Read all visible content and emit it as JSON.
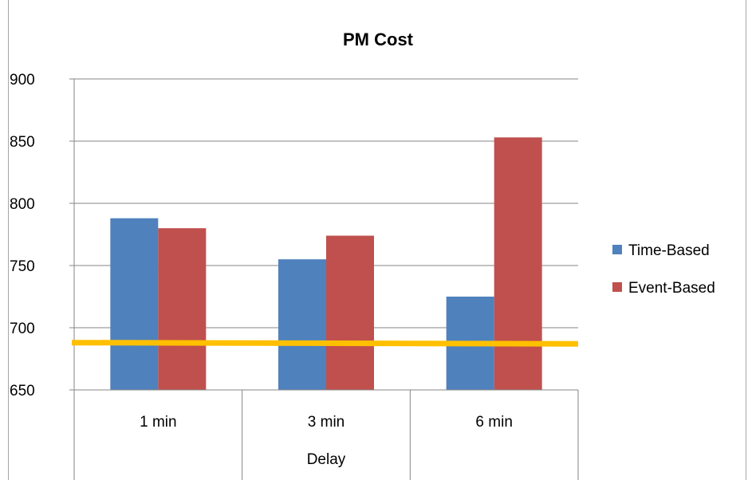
{
  "chart_data": {
    "type": "bar",
    "title": "PM Cost",
    "xlabel": "Delay",
    "ylabel": "",
    "categories": [
      "1 min",
      "3 min",
      "6 min"
    ],
    "series": [
      {
        "name": "Time-Based",
        "values": [
          788,
          755,
          725
        ],
        "color": "#4f81bd"
      },
      {
        "name": "Event-Based",
        "values": [
          780,
          774,
          853
        ],
        "color": "#c0504d"
      }
    ],
    "y_ticks": [
      650,
      700,
      750,
      800,
      850,
      900
    ],
    "ylim": [
      650,
      900
    ],
    "grid": true,
    "legend": "right",
    "reference_line": {
      "y_start": 688,
      "y_end": 687,
      "color": "#ffc000"
    }
  }
}
